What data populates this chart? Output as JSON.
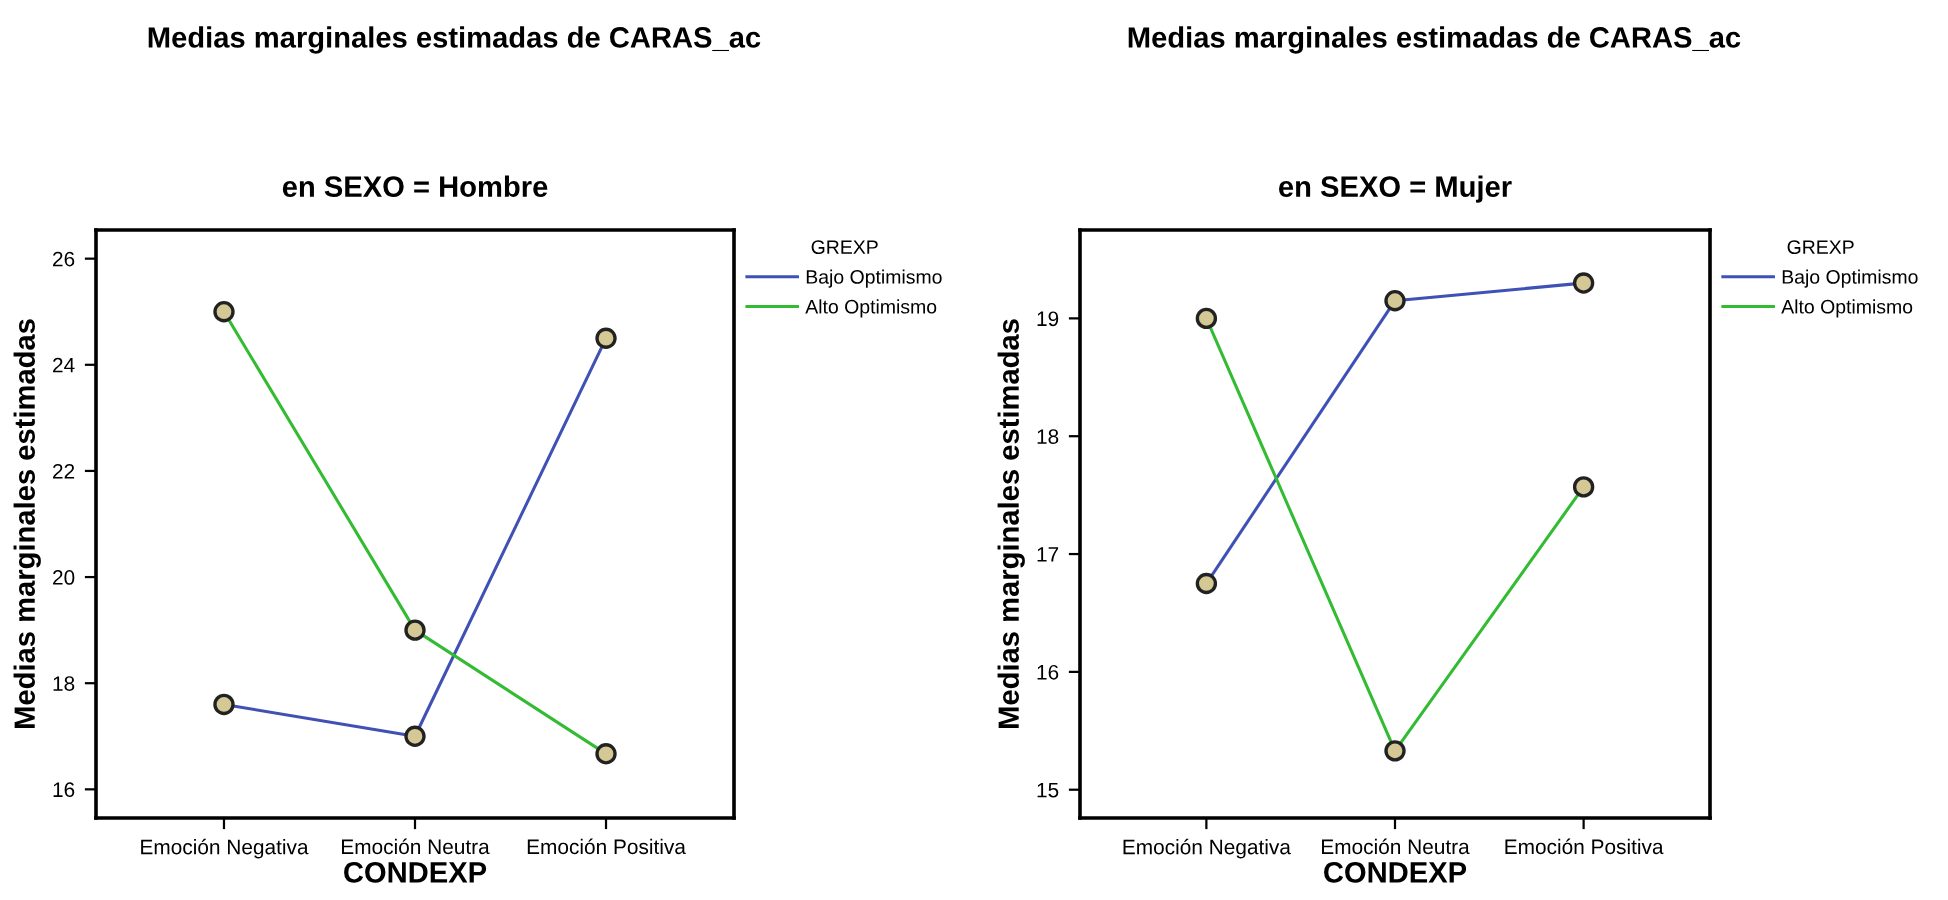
{
  "chart_data": [
    {
      "type": "line",
      "title": "Medias marginales estimadas de CARAS_ac",
      "subtitle": "en SEXO = Hombre",
      "xlabel": "CONDEXP",
      "ylabel": "Medias marginales estimadas",
      "legend_title": "GREXP",
      "legend": "top right",
      "marker": "circle",
      "line_style": "solid",
      "grid": false,
      "categories": [
        "Emoción Negativa",
        "Emoción Neutra",
        "Emoción Positiva"
      ],
      "ylim": [
        15.46,
        26.54
      ],
      "yticks": [
        16,
        18,
        20,
        22,
        24,
        26
      ],
      "series": [
        {
          "name": "Bajo Optimismo",
          "color": "#3f51b5",
          "values": [
            17.6,
            17.0,
            24.5
          ]
        },
        {
          "name": "Alto Optimismo",
          "color": "#33bb33",
          "values": [
            25.0,
            19.0,
            16.67
          ]
        }
      ]
    },
    {
      "type": "line",
      "title": "Medias marginales estimadas de CARAS_ac",
      "subtitle": "en SEXO = Mujer",
      "xlabel": "CONDEXP",
      "ylabel": "Medias marginales estimadas",
      "legend_title": "GREXP",
      "legend": "top right",
      "marker": "circle",
      "line_style": "solid",
      "grid": false,
      "categories": [
        "Emoción Negativa",
        "Emoción Neutra",
        "Emoción Positiva"
      ],
      "ylim": [
        14.76,
        19.75
      ],
      "yticks": [
        15,
        16,
        17,
        18,
        19
      ],
      "series": [
        {
          "name": "Bajo Optimismo",
          "color": "#3f51b5",
          "values": [
            16.75,
            19.15,
            19.3
          ]
        },
        {
          "name": "Alto Optimismo",
          "color": "#33bb33",
          "values": [
            19.0,
            15.33,
            17.57
          ]
        }
      ]
    }
  ]
}
